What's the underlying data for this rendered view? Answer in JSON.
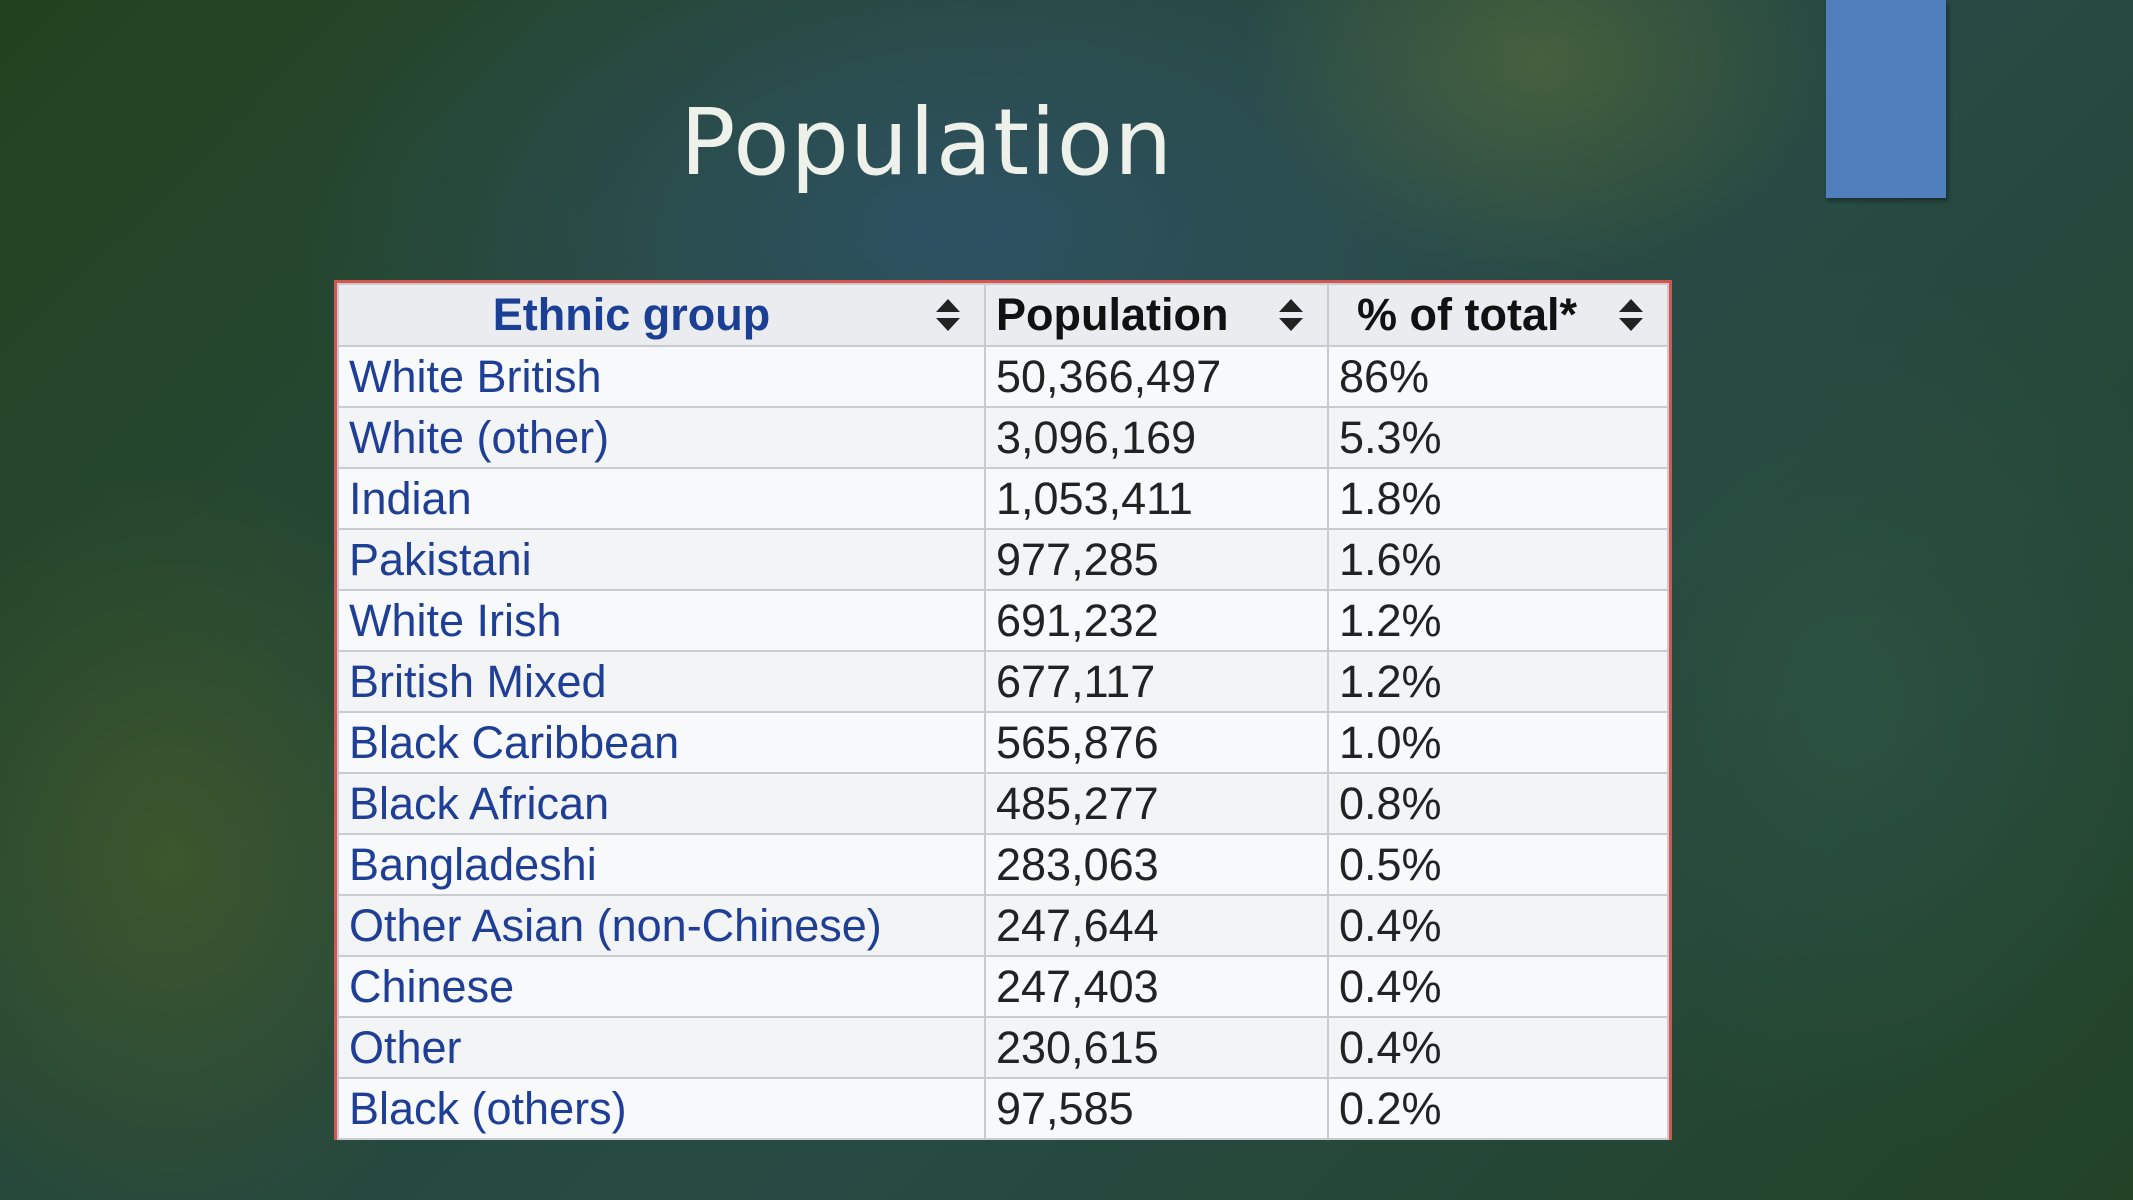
{
  "slide": {
    "title": "Population"
  },
  "table": {
    "headers": [
      "Ethnic group",
      "Population",
      "% of total*"
    ],
    "rows": [
      {
        "group": "White British",
        "population": "50,366,497",
        "percent": "86%"
      },
      {
        "group": "White (other)",
        "population": "3,096,169",
        "percent": "5.3%"
      },
      {
        "group": "Indian",
        "population": "1,053,411",
        "percent": "1.8%"
      },
      {
        "group": "Pakistani",
        "population": "977,285",
        "percent": "1.6%"
      },
      {
        "group": "White Irish",
        "population": "691,232",
        "percent": "1.2%"
      },
      {
        "group": "British Mixed",
        "population": "677,117",
        "percent": "1.2%"
      },
      {
        "group": "Black Caribbean",
        "population": "565,876",
        "percent": "1.0%"
      },
      {
        "group": "Black African",
        "population": "485,277",
        "percent": "0.8%"
      },
      {
        "group": "Bangladeshi",
        "population": "283,063",
        "percent": "0.5%"
      },
      {
        "group": "Other Asian (non-Chinese)",
        "population": "247,644",
        "percent": "0.4%"
      },
      {
        "group": "Chinese",
        "population": "247,403",
        "percent": "0.4%"
      },
      {
        "group": "Other",
        "population": "230,615",
        "percent": "0.4%"
      },
      {
        "group": "Black (others)",
        "population": "97,585",
        "percent": "0.2%"
      }
    ]
  },
  "colors": {
    "accent_block": "#4f80bd",
    "link_text": "#1f3f96",
    "table_border": "#d9534f"
  },
  "icons": {
    "sort": "sort-arrows-icon"
  }
}
